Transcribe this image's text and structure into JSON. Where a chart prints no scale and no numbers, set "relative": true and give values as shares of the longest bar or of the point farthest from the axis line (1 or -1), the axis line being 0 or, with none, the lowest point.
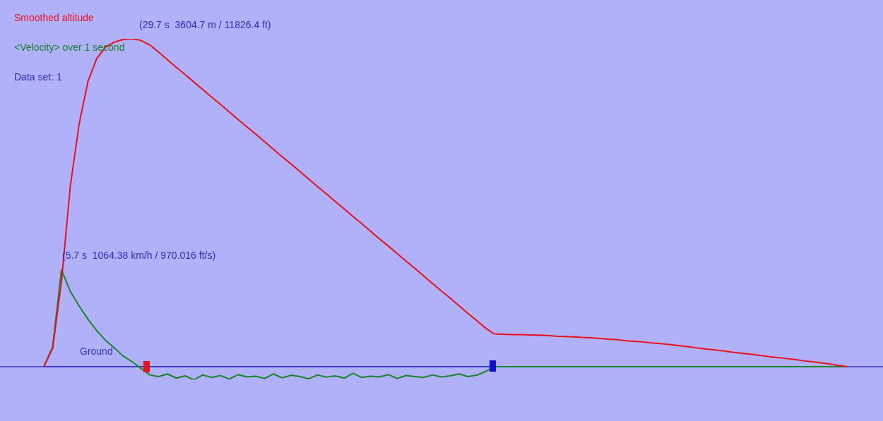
{
  "chart_data": {
    "type": "line",
    "relative": true,
    "marker": "none",
    "line_style": "solid",
    "categories": [
      null,
      null,
      null,
      null,
      null,
      null,
      null,
      null,
      null,
      null,
      null,
      null,
      null,
      null,
      null,
      null,
      null,
      null,
      null,
      null,
      null,
      null,
      null,
      null,
      null,
      null,
      null,
      null,
      null,
      null,
      null,
      null,
      null,
      null,
      null,
      null,
      null,
      null,
      null,
      null,
      null,
      null,
      null,
      null,
      null,
      null,
      null,
      null,
      null,
      null,
      null,
      null,
      null,
      null,
      null,
      null,
      null,
      null,
      null,
      null,
      null,
      null,
      null,
      null,
      null,
      null,
      null,
      null,
      null,
      null,
      null,
      null,
      null,
      null,
      null,
      null,
      null,
      null,
      null,
      null,
      null,
      null,
      null,
      null,
      null,
      null,
      null,
      null,
      null,
      null,
      null,
      null
    ],
    "series": [
      {
        "name": "Smoothed altitude",
        "color": "#e8101c",
        "values": [
          0,
          0.055,
          0.26,
          0.55,
          0.74,
          0.87,
          0.94,
          0.975,
          0.99,
          0.998,
          1,
          0.995,
          0.981,
          0.959,
          0.936,
          0.913,
          0.891,
          0.868,
          0.845,
          0.822,
          0.8,
          0.777,
          0.754,
          0.731,
          0.709,
          0.686,
          0.663,
          0.64,
          0.618,
          0.595,
          0.572,
          0.549,
          0.527,
          0.504,
          0.481,
          0.458,
          0.436,
          0.413,
          0.39,
          0.368,
          0.345,
          0.322,
          0.3,
          0.277,
          0.254,
          0.231,
          0.209,
          0.186,
          0.163,
          0.141,
          0.118,
          0.1,
          0.099,
          0.098,
          0.098,
          0.097,
          0.096,
          0.095,
          0.093,
          0.092,
          0.091,
          0.089,
          0.088,
          0.086,
          0.084,
          0.082,
          0.079,
          0.077,
          0.075,
          0.072,
          0.07,
          0.067,
          0.064,
          0.061,
          0.057,
          0.054,
          0.051,
          0.048,
          0.044,
          0.041,
          0.038,
          0.035,
          0.031,
          0.028,
          0.025,
          0.022,
          0.018,
          0.015,
          0.012,
          0.008,
          0.004,
          0
        ]
      },
      {
        "name": "<Velocity> over 1 second",
        "color": "#17842a",
        "values": [
          0,
          0.06,
          0.295,
          0.23,
          0.185,
          0.145,
          0.11,
          0.08,
          0.057,
          0.032,
          0.015,
          -0.005,
          -0.025,
          -0.03,
          -0.022,
          -0.035,
          -0.028,
          -0.04,
          -0.025,
          -0.033,
          -0.027,
          -0.038,
          -0.024,
          -0.031,
          -0.029,
          -0.036,
          -0.022,
          -0.034,
          -0.026,
          -0.03,
          -0.037,
          -0.025,
          -0.032,
          -0.028,
          -0.035,
          -0.02,
          -0.033,
          -0.029,
          -0.031,
          -0.024,
          -0.036,
          -0.027,
          -0.03,
          -0.033,
          -0.025,
          -0.031,
          -0.028,
          -0.022,
          -0.03,
          -0.026,
          -0.015,
          0,
          0,
          0,
          0,
          0,
          0,
          0,
          0,
          0,
          0,
          0,
          0,
          0,
          0,
          0,
          0,
          0,
          0,
          0,
          0,
          0,
          0,
          0,
          0,
          0,
          0,
          0,
          0,
          0,
          0,
          0,
          0,
          0,
          0,
          0,
          0,
          0,
          0,
          0,
          0,
          0
        ]
      }
    ],
    "annotations": [
      "Data set: 1",
      "(29.7 s  3604.7 m / 11826.4 ft)",
      "(5.7 s  1064.38 km/h / 970.016 ft/s)"
    ],
    "ref_lines": [
      {
        "axis": "y",
        "value": 0,
        "label": "Ground",
        "color": "#3434c8"
      }
    ]
  }
}
